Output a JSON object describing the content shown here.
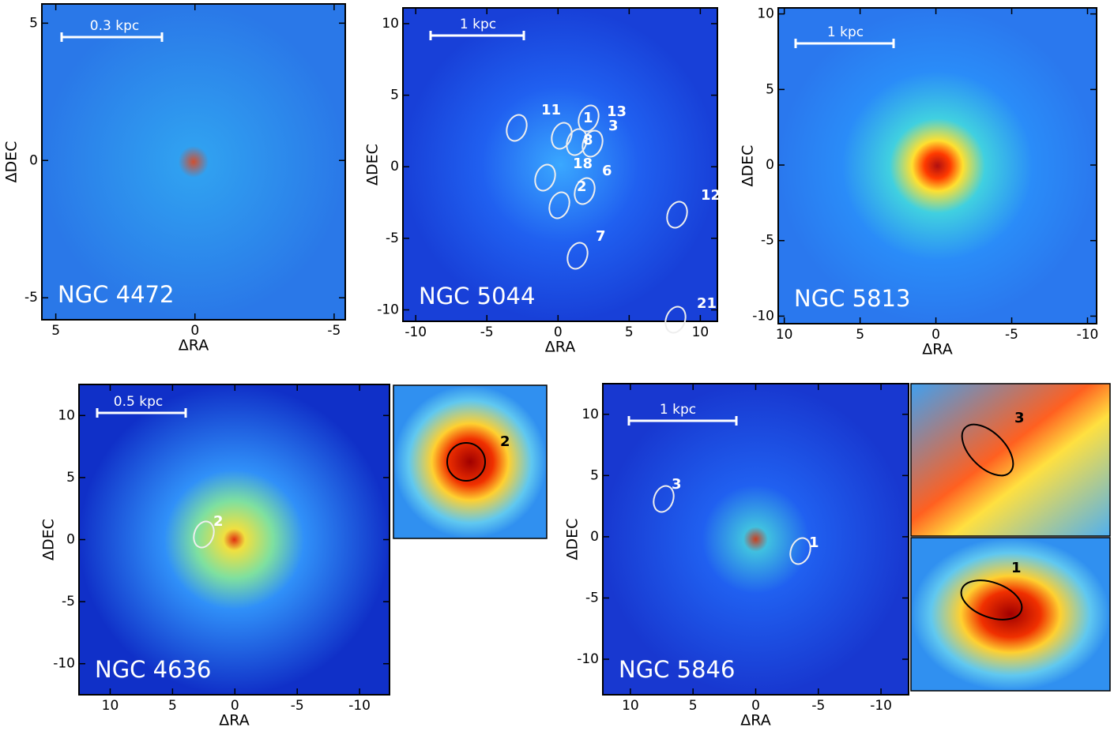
{
  "panels": [
    {
      "name": "NGC 4472",
      "scale_bar": "0.3 kpc",
      "xlabel": "ΔRA",
      "ylabel": "ΔDEC",
      "xlim": [
        5.5,
        -5.4
      ],
      "ylim": [
        -5.8,
        5.7
      ],
      "xticks": [
        5,
        0,
        -5
      ],
      "yticks": [
        -5,
        0,
        5
      ],
      "regions": []
    },
    {
      "name": "NGC 5044",
      "scale_bar": "1 kpc",
      "xlabel": "ΔRA",
      "ylabel": "ΔDEC",
      "xlim": [
        -10.9,
        11.2
      ],
      "ylim": [
        -10.8,
        11.1
      ],
      "xticks": [
        -10,
        -5,
        0,
        5,
        10
      ],
      "yticks": [
        -10,
        -5,
        0,
        5,
        10
      ],
      "regions": [
        "11",
        "1",
        "13",
        "3",
        "8",
        "18",
        "6",
        "2",
        "12",
        "7",
        "21"
      ]
    },
    {
      "name": "NGC 5813",
      "scale_bar": "1 kpc",
      "xlabel": "ΔRA",
      "ylabel": "ΔDEC",
      "xlim": [
        10.4,
        -10.6
      ],
      "ylim": [
        -10.5,
        10.4
      ],
      "xticks": [
        10,
        5,
        0,
        -5,
        -10
      ],
      "yticks": [
        -10,
        -5,
        0,
        5,
        10
      ],
      "regions": []
    },
    {
      "name": "NGC 4636",
      "scale_bar": "0.5 kpc",
      "xlabel": "ΔRA",
      "ylabel": "ΔDEC",
      "xlim": [
        12.5,
        -12.4
      ],
      "ylim": [
        -12.5,
        12.5
      ],
      "xticks": [
        10,
        5,
        0,
        -5,
        -10
      ],
      "yticks": [
        -10,
        -5,
        0,
        5,
        10
      ],
      "regions": [
        "2"
      ],
      "insets": [
        "2"
      ]
    },
    {
      "name": "NGC 5846",
      "scale_bar": "1 kpc",
      "xlabel": "ΔRA",
      "ylabel": "ΔDEC",
      "xlim": [
        12.2,
        -12.2
      ],
      "ylim": [
        -12.9,
        12.5
      ],
      "xticks": [
        10,
        5,
        0,
        -5,
        -10
      ],
      "yticks": [
        -10,
        -5,
        0,
        5,
        10
      ],
      "regions": [
        "3",
        "1"
      ],
      "insets": [
        "3",
        "1"
      ]
    }
  ]
}
